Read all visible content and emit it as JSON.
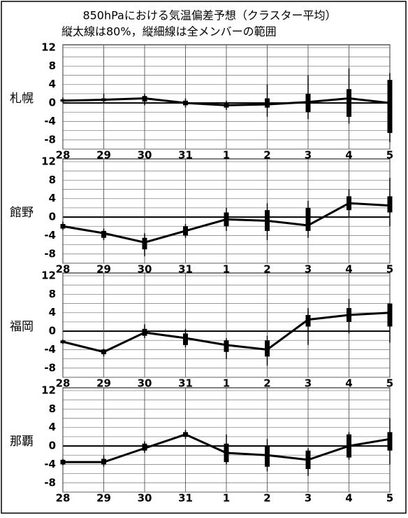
{
  "title_lines": [
    "850hPaにおける気温偏差予想（クラスター平均）",
    "縦太線は80%，縦細線は全メンバーの範囲"
  ],
  "chart_data": [
    {
      "type": "line",
      "title": "札幌",
      "categories": [
        "28",
        "29",
        "30",
        "31",
        "1",
        "2",
        "3",
        "4",
        "5"
      ],
      "values": [
        0.5,
        0.7,
        1,
        0,
        -0.5,
        -0.3,
        0.2,
        1,
        0
      ],
      "range80": [
        [
          0.3,
          0.8
        ],
        [
          0.4,
          1
        ],
        [
          0.3,
          1.5
        ],
        [
          -0.5,
          0.5
        ],
        [
          -1,
          0
        ],
        [
          -1,
          1
        ],
        [
          -2,
          2
        ],
        [
          -3,
          3
        ],
        [
          -6.5,
          5
        ]
      ],
      "range_all": [
        [
          0,
          1.2
        ],
        [
          0,
          2
        ],
        [
          -0.5,
          2
        ],
        [
          -1,
          1
        ],
        [
          -1.5,
          0.5
        ],
        [
          -3,
          4
        ],
        [
          -3.5,
          6
        ],
        [
          -4.5,
          7.5
        ],
        [
          -8.5,
          6.5
        ]
      ],
      "ylim": [
        -10,
        12
      ],
      "yticks": [
        -8,
        -4,
        0,
        4,
        8,
        12
      ],
      "minor_yticks": [
        -10,
        -6,
        -2,
        2,
        6,
        10
      ],
      "grid": true,
      "color": "#000000"
    },
    {
      "type": "line",
      "title": "館野",
      "categories": [
        "28",
        "29",
        "30",
        "31",
        "1",
        "2",
        "3",
        "4",
        "5"
      ],
      "values": [
        -2,
        -3.5,
        -5.5,
        -3,
        -0.5,
        -0.8,
        -1.8,
        3,
        2.5
      ],
      "range80": [
        [
          -2.5,
          -1.5
        ],
        [
          -4.5,
          -3
        ],
        [
          -7,
          -4.5
        ],
        [
          -4,
          -2
        ],
        [
          -2,
          1
        ],
        [
          -3,
          1.5
        ],
        [
          -3,
          2
        ],
        [
          1.5,
          4.5
        ],
        [
          1,
          4.5
        ]
      ],
      "range_all": [
        [
          -2.8,
          -1
        ],
        [
          -5,
          -2.5
        ],
        [
          -8.5,
          -3.5
        ],
        [
          -4.5,
          -1.5
        ],
        [
          -3,
          2
        ],
        [
          -5,
          3
        ],
        [
          -4.5,
          3.5
        ],
        [
          0,
          6
        ],
        [
          -2,
          8.5
        ]
      ],
      "ylim": [
        -10,
        12
      ],
      "yticks": [
        -8,
        -4,
        0,
        4,
        8,
        12
      ],
      "minor_yticks": [
        -10,
        -6,
        -2,
        2,
        6,
        10
      ],
      "grid": true,
      "color": "#000000"
    },
    {
      "type": "line",
      "title": "福岡",
      "categories": [
        "28",
        "29",
        "30",
        "31",
        "1",
        "2",
        "3",
        "4",
        "5"
      ],
      "values": [
        -2.3,
        -4.5,
        -0.3,
        -1.5,
        -3,
        -4,
        2.5,
        3.5,
        4
      ],
      "range80": [
        [
          -2.6,
          -2
        ],
        [
          -5,
          -4
        ],
        [
          -1,
          0.5
        ],
        [
          -3,
          -0.5
        ],
        [
          -4.5,
          -2
        ],
        [
          -5.5,
          -2
        ],
        [
          1,
          3.5
        ],
        [
          2,
          5
        ],
        [
          1,
          6
        ]
      ],
      "range_all": [
        [
          -2.8,
          -1.8
        ],
        [
          -5.5,
          -3.8
        ],
        [
          -1.5,
          1.5
        ],
        [
          -3.5,
          0.5
        ],
        [
          -6,
          -1.5
        ],
        [
          -7.5,
          -1
        ],
        [
          -3,
          5
        ],
        [
          -0.5,
          7
        ],
        [
          -2.5,
          6
        ]
      ],
      "ylim": [
        -10,
        12
      ],
      "yticks": [
        -8,
        -4,
        0,
        4,
        8,
        12
      ],
      "minor_yticks": [
        -10,
        -6,
        -2,
        2,
        6,
        10
      ],
      "grid": true,
      "color": "#000000"
    },
    {
      "type": "line",
      "title": "那覇",
      "categories": [
        "28",
        "29",
        "30",
        "31",
        "1",
        "2",
        "3",
        "4",
        "5"
      ],
      "values": [
        -3.5,
        -3.5,
        -0.5,
        2.5,
        -1.5,
        -2,
        -3,
        0,
        1.5
      ],
      "range80": [
        [
          -4,
          -3
        ],
        [
          -4,
          -2.8
        ],
        [
          -1,
          0.5
        ],
        [
          2,
          3
        ],
        [
          -3.5,
          0.5
        ],
        [
          -4.5,
          0
        ],
        [
          -5,
          -1
        ],
        [
          -2.5,
          2.5
        ],
        [
          -1,
          3
        ]
      ],
      "range_all": [
        [
          -4.2,
          -2.8
        ],
        [
          -4.5,
          -2
        ],
        [
          -1.5,
          1
        ],
        [
          1.5,
          3.5
        ],
        [
          -4,
          2.5
        ],
        [
          -5.5,
          1.5
        ],
        [
          -6.5,
          -0.5
        ],
        [
          -3,
          3
        ],
        [
          -4,
          6
        ]
      ],
      "ylim": [
        -10,
        12
      ],
      "yticks": [
        -8,
        -4,
        0,
        4,
        8,
        12
      ],
      "minor_yticks": [
        -10,
        -6,
        -2,
        2,
        6,
        10
      ],
      "grid": true,
      "color": "#000000"
    }
  ]
}
